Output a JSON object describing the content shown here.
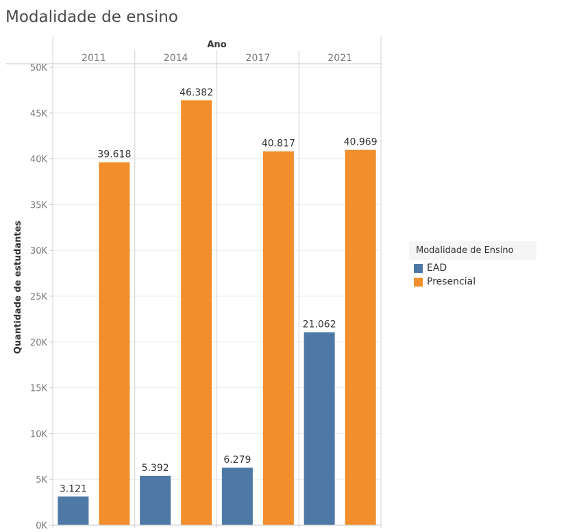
{
  "title": "Modalidade de ensino",
  "chart_data": {
    "type": "bar",
    "column_header": "Ano",
    "categories": [
      "2011",
      "2014",
      "2017",
      "2021"
    ],
    "series": [
      {
        "name": "EAD",
        "color": "#4e79a7",
        "values": [
          3121,
          5392,
          6279,
          21062
        ],
        "labels": [
          "3.121",
          "5.392",
          "6.279",
          "21.062"
        ]
      },
      {
        "name": "Presencial",
        "color": "#f28e2b",
        "values": [
          39618,
          46382,
          40817,
          40969
        ],
        "labels": [
          "39.618",
          "46.382",
          "40.817",
          "40.969"
        ]
      }
    ],
    "ylabel": "Quantidade de estudantes",
    "ylim": [
      0,
      50000
    ],
    "yticks": [
      0,
      5000,
      10000,
      15000,
      20000,
      25000,
      30000,
      35000,
      40000,
      45000,
      50000
    ],
    "ytick_labels": [
      "0K",
      "5K",
      "10K",
      "15K",
      "20K",
      "25K",
      "30K",
      "35K",
      "40K",
      "45K",
      "50K"
    ],
    "legend_title": "Modalidade de Ensino",
    "legend_position": "right",
    "grid": true
  }
}
